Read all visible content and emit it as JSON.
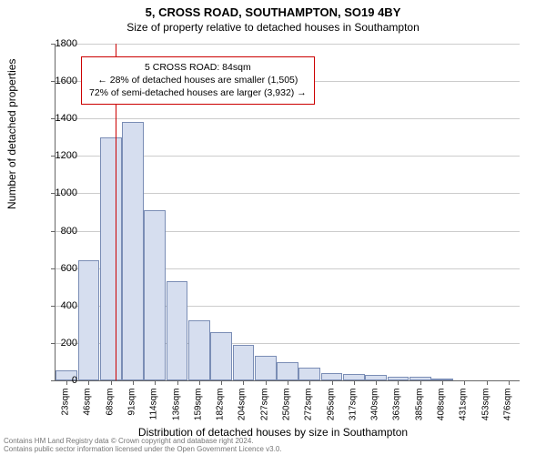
{
  "title": "5, CROSS ROAD, SOUTHAMPTON, SO19 4BY",
  "subtitle": "Size of property relative to detached houses in Southampton",
  "y_axis_label": "Number of detached properties",
  "x_axis_label": "Distribution of detached houses by size in Southampton",
  "y_max": 1800,
  "y_tick_step": 200,
  "bar_fill": "#d6deef",
  "bar_border": "#7a8db5",
  "grid_color": "#cccccc",
  "marker_color": "#cc0000",
  "annotation": {
    "line1": "5 CROSS ROAD: 84sqm",
    "line2": "← 28% of detached houses are smaller (1,505)",
    "line3": "72% of semi-detached houses are larger (3,932) →"
  },
  "marker_x_category_index": 2.7,
  "categories": [
    "23sqm",
    "46sqm",
    "68sqm",
    "91sqm",
    "114sqm",
    "136sqm",
    "159sqm",
    "182sqm",
    "204sqm",
    "227sqm",
    "250sqm",
    "272sqm",
    "295sqm",
    "317sqm",
    "340sqm",
    "363sqm",
    "385sqm",
    "408sqm",
    "431sqm",
    "453sqm",
    "476sqm"
  ],
  "values": [
    55,
    640,
    1300,
    1380,
    910,
    530,
    320,
    260,
    190,
    130,
    95,
    70,
    40,
    35,
    30,
    20,
    18,
    10,
    0,
    0,
    0
  ],
  "footer_line1": "Contains HM Land Registry data © Crown copyright and database right 2024.",
  "footer_line2": "Contains public sector information licensed under the Open Government Licence v3.0."
}
